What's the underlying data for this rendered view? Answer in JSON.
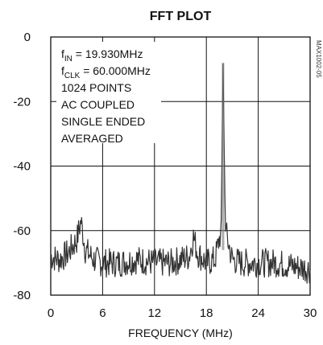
{
  "chart_data": {
    "type": "line",
    "title": "FFT PLOT",
    "xlabel": "FREQUENCY (MHz)",
    "ylabel": "",
    "xlim": [
      0,
      30
    ],
    "ylim": [
      -80,
      0
    ],
    "grid": true,
    "x_ticks": [
      "0",
      "6",
      "12",
      "18",
      "24",
      "30"
    ],
    "y_ticks": [
      "0",
      "-20",
      "-40",
      "-60",
      "-80"
    ],
    "annotations": [
      {
        "main": "f",
        "sub": "IN",
        "rest": " = 19.930MHz"
      },
      {
        "main": "f",
        "sub": "CLK",
        "rest": " = 60.000MHz"
      },
      {
        "text": "1024 POINTS"
      },
      {
        "text": "AC COUPLED"
      },
      {
        "text": "SINGLE ENDED"
      },
      {
        "text": "AVERAGED"
      }
    ],
    "side_label": "MAX1002-05",
    "series": [
      {
        "color": "#333333",
        "x": [
          0,
          1,
          2,
          3,
          3.5,
          4,
          5,
          6,
          8,
          10,
          12,
          14,
          16,
          16.5,
          17,
          18,
          19,
          19.7,
          19.93,
          20.2,
          21,
          22,
          24,
          26,
          28,
          30
        ],
        "y": [
          -68,
          -69,
          -67,
          -63,
          -57,
          -66,
          -69,
          -70,
          -70,
          -69,
          -70,
          -70,
          -68,
          -62,
          -67,
          -70,
          -69,
          -60,
          -8,
          -60,
          -69,
          -70,
          -70,
          -70,
          -71,
          -72
        ]
      }
    ]
  }
}
